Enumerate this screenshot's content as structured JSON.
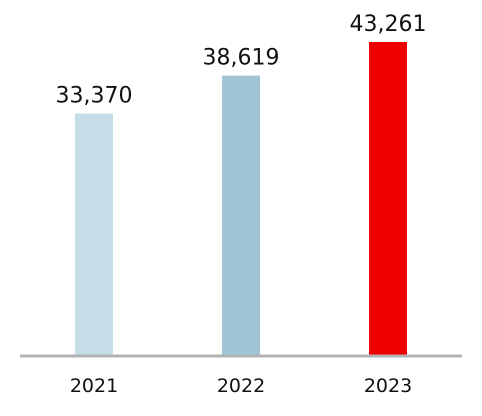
{
  "chart_data": {
    "type": "bar",
    "categories": [
      "2021",
      "2022",
      "2023"
    ],
    "values": [
      33370,
      38619,
      43261
    ],
    "value_labels": [
      "33,370",
      "38,619",
      "43,261"
    ],
    "colors": [
      "#c5dde7",
      "#9fc4d3",
      "#ee0000"
    ],
    "baseline_color": "#b3b3b3",
    "ylim": [
      0,
      43261
    ],
    "grid": false,
    "legend": "none"
  }
}
